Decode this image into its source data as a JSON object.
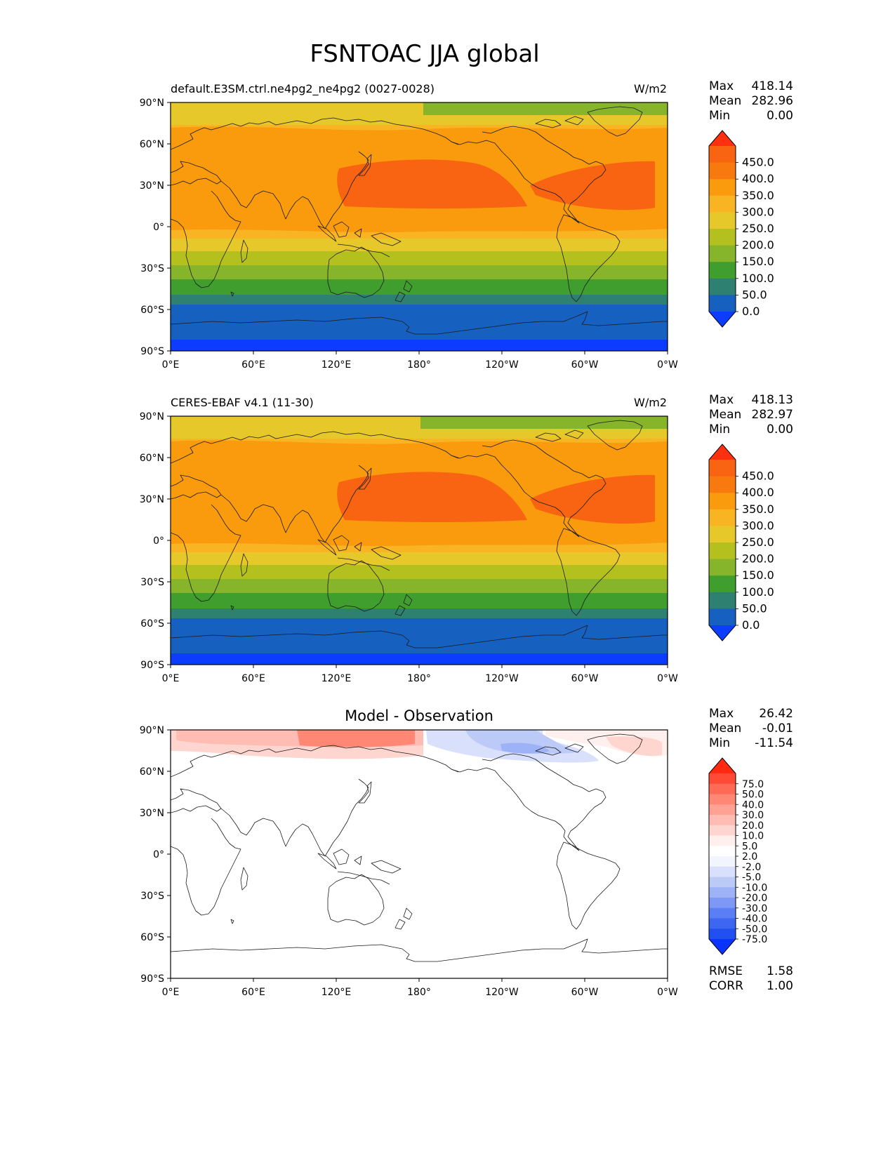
{
  "figure": {
    "title": "FSNTOAC JJA global"
  },
  "axes": {
    "lat_ticks": [
      "90°N",
      "60°N",
      "30°N",
      "0°",
      "30°S",
      "60°S",
      "90°S"
    ],
    "lon_ticks": [
      "0°E",
      "60°E",
      "120°E",
      "180°",
      "120°W",
      "60°W",
      "0°W"
    ]
  },
  "panels": [
    {
      "id": "model",
      "title_left": "default.E3SM.ctrl.ne4pg2_ne4pg2 (0027-0028)",
      "title_center": "",
      "title_right": "W/m2",
      "stats": {
        "labels": [
          "Max",
          "Mean",
          "Min"
        ],
        "values": [
          "418.14",
          "282.96",
          "0.00"
        ]
      },
      "colorbar": {
        "labels": [
          "450.0",
          "400.0",
          "350.0",
          "300.0",
          "250.0",
          "200.0",
          "150.0",
          "100.0",
          "50.0",
          "0.0"
        ],
        "colors": [
          "#0b3cff",
          "#1660c0",
          "#2e8070",
          "#3f9e2e",
          "#86b42a",
          "#b4c01e",
          "#e6c82a",
          "#f8b423",
          "#fa9b0e",
          "#f87a0f",
          "#f86412",
          "#ff3010"
        ]
      }
    },
    {
      "id": "obs",
      "title_left": "CERES-EBAF v4.1 (11-30)",
      "title_center": "",
      "title_right": "W/m2",
      "stats": {
        "labels": [
          "Max",
          "Mean",
          "Min"
        ],
        "values": [
          "418.13",
          "282.97",
          "0.00"
        ]
      },
      "colorbar": {
        "labels": [
          "450.0",
          "400.0",
          "350.0",
          "300.0",
          "250.0",
          "200.0",
          "150.0",
          "100.0",
          "50.0",
          "0.0"
        ],
        "colors": [
          "#0b3cff",
          "#1660c0",
          "#2e8070",
          "#3f9e2e",
          "#86b42a",
          "#b4c01e",
          "#e6c82a",
          "#f8b423",
          "#fa9b0e",
          "#f87a0f",
          "#f86412",
          "#ff3010"
        ]
      }
    },
    {
      "id": "diff",
      "title_left": "",
      "title_center": "Model - Observation",
      "title_right": "",
      "stats": {
        "labels": [
          "Max",
          "Mean",
          "Min"
        ],
        "values": [
          "26.42",
          "-0.01",
          "-11.54"
        ]
      },
      "extra_stats": {
        "labels": [
          "RMSE",
          "CORR"
        ],
        "values": [
          "1.58",
          "1.00"
        ]
      },
      "colorbar": {
        "labels": [
          "75.0",
          "50.0",
          "40.0",
          "30.0",
          "20.0",
          "10.0",
          "5.0",
          "2.0",
          "-2.0",
          "-5.0",
          "-10.0",
          "-20.0",
          "-30.0",
          "-40.0",
          "-50.0",
          "-75.0"
        ],
        "colors": [
          "#0b33ff",
          "#2250f0",
          "#3d66f2",
          "#5a7ff5",
          "#7d98f5",
          "#9eb2f7",
          "#bccaf8",
          "#d8e0fb",
          "#f2f4fe",
          "#ffffff",
          "#fff0ee",
          "#ffd6cf",
          "#ffbcb2",
          "#ffa293",
          "#ff8774",
          "#ff6a56",
          "#ff4a36",
          "#ff2a10"
        ]
      }
    }
  ]
}
